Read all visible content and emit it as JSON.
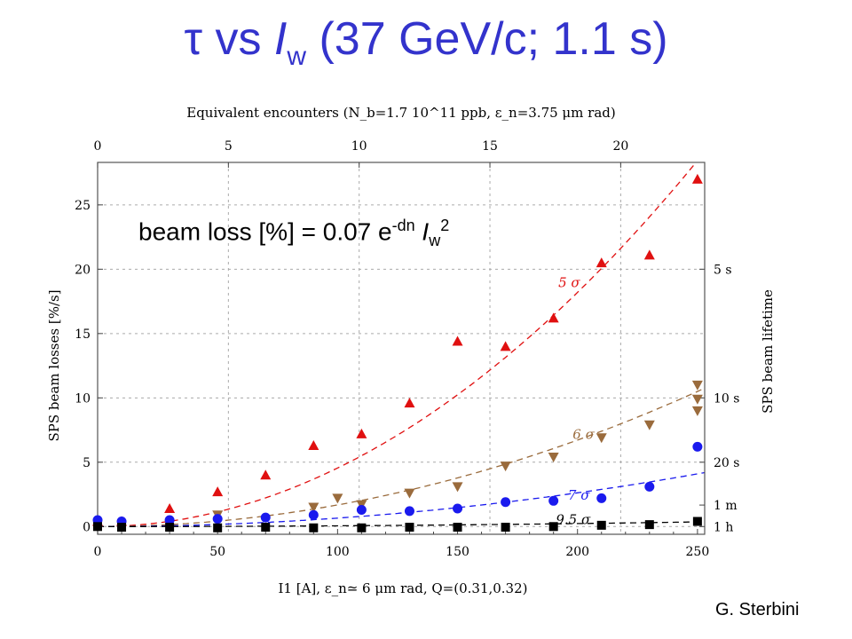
{
  "title": {
    "tau": "τ",
    "vs": " vs ",
    "I": "I",
    "w": "w",
    "rest": " (37 GeV/c; 1.1 s)"
  },
  "formula": {
    "prefix": "beam loss [%] = 0.07 e",
    "exponent": "-dn",
    "I": " I",
    "sub": "w",
    "sup": "2"
  },
  "credit": "G. Sterbini",
  "chart_data": {
    "type": "scatter",
    "title": "",
    "top_axis_label": "Equivalent encounters (N_b=1.7 10^11 ppb, ε_n=3.75 μm rad)",
    "xlabel": "I1 [A], ε_n≃ 6 μm rad, Q=(0.31,0.32)",
    "ylabel": "SPS beam losses [%/s]",
    "right_axis_label": "SPS beam lifetime",
    "xlim": [
      0,
      253
    ],
    "ylim": [
      -0.6,
      28.3
    ],
    "x_ticks": [
      0,
      50,
      100,
      150,
      200,
      250
    ],
    "y_ticks": [
      0,
      5,
      10,
      15,
      20,
      25
    ],
    "top_ticks": [
      {
        "label": "0",
        "x": 0
      },
      {
        "label": "5",
        "x": 54.5
      },
      {
        "label": "10",
        "x": 109
      },
      {
        "label": "15",
        "x": 163.5
      },
      {
        "label": "20",
        "x": 218
      }
    ],
    "right_ticks": [
      {
        "label": "5 s",
        "y": 20
      },
      {
        "label": "10 s",
        "y": 10
      },
      {
        "label": "20 s",
        "y": 5
      },
      {
        "label": "1 m",
        "y": 1.67
      },
      {
        "label": "1 h",
        "y": 0
      }
    ],
    "grid": true,
    "series": [
      {
        "name": "5 σ",
        "marker": "triangle-up",
        "color": "#e01010",
        "curve_k": 0.000455,
        "label_at": {
          "x": 192,
          "y": 18.6
        },
        "x": [
          0,
          10,
          30,
          50,
          70,
          90,
          110,
          130,
          150,
          170,
          190,
          210,
          230,
          250
        ],
        "y": [
          0.4,
          0.4,
          1.4,
          2.7,
          4.0,
          6.3,
          7.2,
          9.6,
          14.4,
          14.0,
          16.2,
          20.5,
          21.1,
          27.0
        ]
      },
      {
        "name": "6 σ",
        "marker": "triangle-down",
        "color": "#9a6b3c",
        "curve_k": 0.000168,
        "label_at": {
          "x": 198,
          "y": 6.8
        },
        "x": [
          50,
          90,
          100,
          110,
          130,
          150,
          170,
          190,
          210,
          230,
          250,
          250,
          250
        ],
        "y": [
          0.9,
          1.5,
          2.2,
          1.7,
          2.6,
          3.1,
          4.7,
          5.4,
          6.9,
          7.9,
          11.0,
          9.9,
          9.0
        ]
      },
      {
        "name": "7 σ",
        "marker": "circle",
        "color": "#1a1aee",
        "curve_k": 6.55e-05,
        "label_at": {
          "x": 196,
          "y": 2.1
        },
        "x": [
          0,
          10,
          30,
          50,
          70,
          90,
          110,
          130,
          150,
          170,
          190,
          210,
          230,
          250
        ],
        "y": [
          0.5,
          0.4,
          0.5,
          0.6,
          0.7,
          0.9,
          1.3,
          1.2,
          1.4,
          1.9,
          2.0,
          2.2,
          3.1,
          6.2
        ]
      },
      {
        "name": "9.5 σ",
        "marker": "square",
        "color": "#000000",
        "curve_k": 5.8e-06,
        "label_at": {
          "x": 191,
          "y": 0.2
        },
        "x": [
          0,
          10,
          30,
          50,
          70,
          90,
          110,
          130,
          150,
          170,
          190,
          210,
          230,
          250
        ],
        "y": [
          0.0,
          -0.05,
          -0.05,
          -0.1,
          -0.05,
          -0.1,
          -0.1,
          -0.05,
          -0.05,
          -0.05,
          0.0,
          0.1,
          0.15,
          0.4
        ]
      }
    ]
  },
  "colors": {
    "title": "#3333cc",
    "grid": "#aaaaaa",
    "axis": "#444444"
  }
}
